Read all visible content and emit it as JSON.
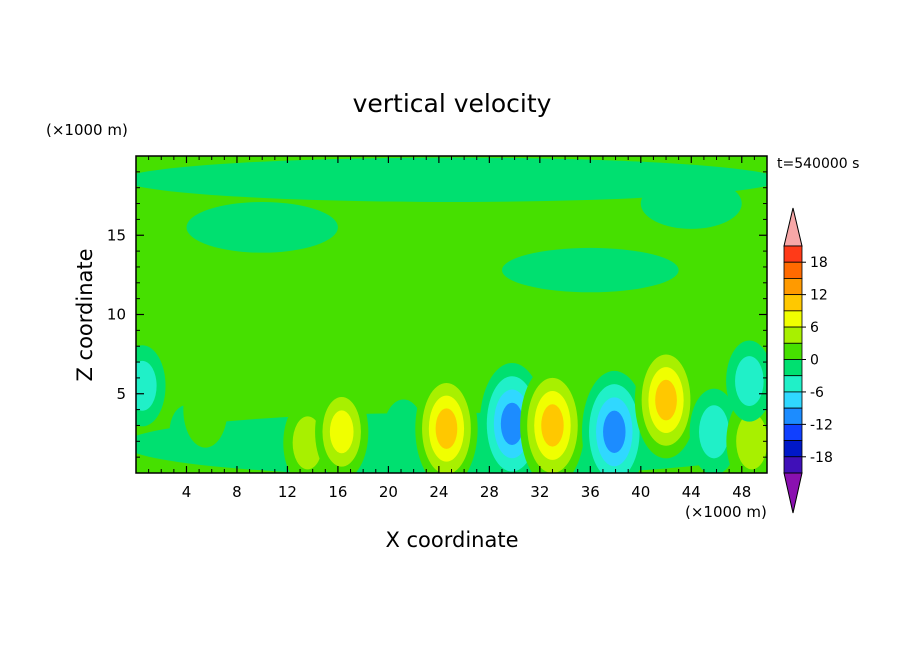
{
  "chart_data": {
    "type": "heatmap",
    "title": "vertical velocity",
    "xlabel": "X coordinate",
    "ylabel": "Z coordinate",
    "x_unit": "(×1000 m)",
    "y_unit": "(×1000 m)",
    "time_label": "t=540000 s",
    "xlim": [
      0,
      50
    ],
    "ylim": [
      0,
      20
    ],
    "x_ticks": [
      4,
      8,
      12,
      16,
      20,
      24,
      28,
      32,
      36,
      40,
      44,
      48
    ],
    "y_ticks": [
      5,
      10,
      15
    ],
    "colorbar": {
      "labels": [
        18,
        12,
        6,
        0,
        -6,
        -12,
        -18
      ],
      "levels": [
        21,
        18,
        15,
        12,
        9,
        6,
        3,
        0,
        -3,
        -6,
        -9,
        -12,
        -15,
        -18,
        -21
      ],
      "colors": [
        "#ff3a18",
        "#ff6a00",
        "#ff9a00",
        "#ffc800",
        "#f0ff00",
        "#a8f000",
        "#46e000",
        "#00e070",
        "#20f0c8",
        "#30d8ff",
        "#1c8cff",
        "#1040ff",
        "#0018c8",
        "#4010b8"
      ],
      "over_color": "#f7a7a7",
      "under_color": "#8a10b0"
    },
    "cells": [
      {
        "x": 4.0,
        "z": 2.6,
        "w": 0.5
      },
      {
        "x": 5.5,
        "z": 4.0,
        "w": 5.0
      },
      {
        "x": 13.6,
        "z": 1.9,
        "w": 7.0
      },
      {
        "x": 16.3,
        "z": 2.6,
        "w": 9.0
      },
      {
        "x": 21.2,
        "z": 2.4,
        "w": -4.0
      },
      {
        "x": 24.6,
        "z": 2.8,
        "w": 13.0
      },
      {
        "x": 29.8,
        "z": 3.1,
        "w": -14.0
      },
      {
        "x": 33.0,
        "z": 3.0,
        "w": 14.0
      },
      {
        "x": 37.9,
        "z": 2.6,
        "w": -14.0
      },
      {
        "x": 42.0,
        "z": 4.6,
        "w": 13.0
      },
      {
        "x": 45.8,
        "z": 2.6,
        "w": -7.0
      },
      {
        "x": 48.8,
        "z": 2.0,
        "w": 8.0
      },
      {
        "x": 48.6,
        "z": 5.8,
        "w": -6.0
      },
      {
        "x": 0.5,
        "z": 5.5,
        "w": -6.0
      }
    ]
  }
}
